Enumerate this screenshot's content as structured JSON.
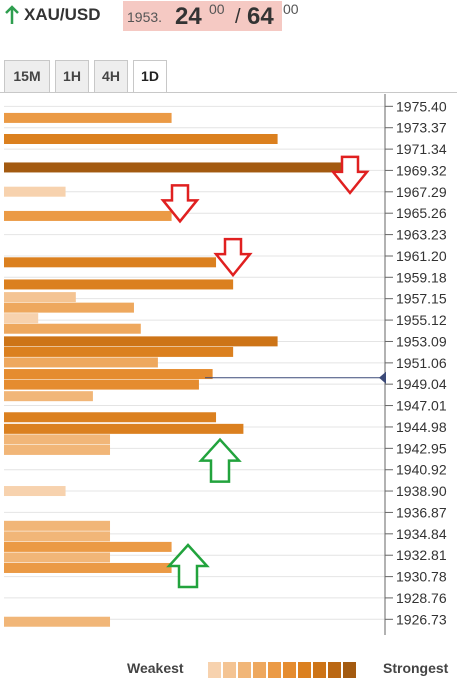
{
  "header": {
    "symbol": "XAU/USD",
    "bid_small": "1953.",
    "bid_big": "24",
    "bid_sup": "00",
    "separator": "/",
    "ask_big": "64",
    "ask_sup": "00",
    "arrow_color": "#2e9e4f",
    "quote_bg": "#f5c9c3"
  },
  "tabs": [
    {
      "label": "15M",
      "active": false
    },
    {
      "label": "1H",
      "active": false
    },
    {
      "label": "4H",
      "active": false
    },
    {
      "label": "1D",
      "active": true
    }
  ],
  "chart_data": {
    "type": "bar",
    "orientation": "horizontal",
    "y_tick_labels": [
      "1975.40",
      "1973.37",
      "1971.34",
      "1969.32",
      "1967.29",
      "1965.26",
      "1963.23",
      "1961.20",
      "1959.18",
      "1957.15",
      "1955.12",
      "1953.09",
      "1951.06",
      "1949.04",
      "1947.01",
      "1944.98",
      "1942.95",
      "1940.92",
      "1938.90",
      "1936.87",
      "1934.84",
      "1932.81",
      "1930.78",
      "1928.76",
      "1926.73"
    ],
    "ylim": [
      1926.0,
      1976.0
    ],
    "grid": true,
    "bars": [
      {
        "price": 1974.3,
        "strength": 0.49,
        "level": 5
      },
      {
        "price": 1972.3,
        "strength": 0.8,
        "level": 7
      },
      {
        "price": 1969.6,
        "strength": 1.0,
        "level": 10
      },
      {
        "price": 1967.3,
        "strength": 0.18,
        "level": 1
      },
      {
        "price": 1965.0,
        "strength": 0.49,
        "level": 5
      },
      {
        "price": 1960.6,
        "strength": 0.62,
        "level": 7
      },
      {
        "price": 1958.5,
        "strength": 0.67,
        "level": 7
      },
      {
        "price": 1957.3,
        "strength": 0.21,
        "level": 2
      },
      {
        "price": 1956.3,
        "strength": 0.38,
        "level": 4
      },
      {
        "price": 1955.3,
        "strength": 0.1,
        "level": 1
      },
      {
        "price": 1954.3,
        "strength": 0.4,
        "level": 4
      },
      {
        "price": 1953.1,
        "strength": 0.8,
        "level": 8
      },
      {
        "price": 1952.1,
        "strength": 0.67,
        "level": 7
      },
      {
        "price": 1951.1,
        "strength": 0.45,
        "level": 4
      },
      {
        "price": 1950.0,
        "strength": 0.61,
        "level": 6
      },
      {
        "price": 1949.0,
        "strength": 0.57,
        "level": 6
      },
      {
        "price": 1947.9,
        "strength": 0.26,
        "level": 3
      },
      {
        "price": 1945.9,
        "strength": 0.62,
        "level": 7
      },
      {
        "price": 1944.8,
        "strength": 0.7,
        "level": 7
      },
      {
        "price": 1943.8,
        "strength": 0.31,
        "level": 3
      },
      {
        "price": 1942.8,
        "strength": 0.31,
        "level": 3
      },
      {
        "price": 1938.9,
        "strength": 0.18,
        "level": 1
      },
      {
        "price": 1935.6,
        "strength": 0.31,
        "level": 3
      },
      {
        "price": 1934.6,
        "strength": 0.31,
        "level": 3
      },
      {
        "price": 1933.6,
        "strength": 0.49,
        "level": 5
      },
      {
        "price": 1932.6,
        "strength": 0.31,
        "level": 3
      },
      {
        "price": 1931.6,
        "strength": 0.49,
        "level": 5
      },
      {
        "price": 1926.5,
        "strength": 0.31,
        "level": 3
      }
    ],
    "current_price": 1949.65,
    "current_price_color": "#3c4a78",
    "arrows": [
      {
        "direction": "down",
        "price": 1968.8,
        "color": "#e02020"
      },
      {
        "direction": "down",
        "price": 1966.1,
        "color": "#e02020"
      },
      {
        "direction": "down",
        "price": 1961.0,
        "color": "#e02020"
      },
      {
        "direction": "up",
        "price": 1941.6,
        "color": "#22a33d"
      },
      {
        "direction": "up",
        "price": 1931.6,
        "color": "#22a33d"
      }
    ],
    "legend": {
      "weak_label": "Weakest",
      "strong_label": "Strongest",
      "swatch_colors": [
        "#f7d2ae",
        "#f4c493",
        "#f1b678",
        "#eea85e",
        "#eb9a45",
        "#e58c2f",
        "#db801f",
        "#cd7417",
        "#bb6813",
        "#a35a10"
      ]
    }
  }
}
